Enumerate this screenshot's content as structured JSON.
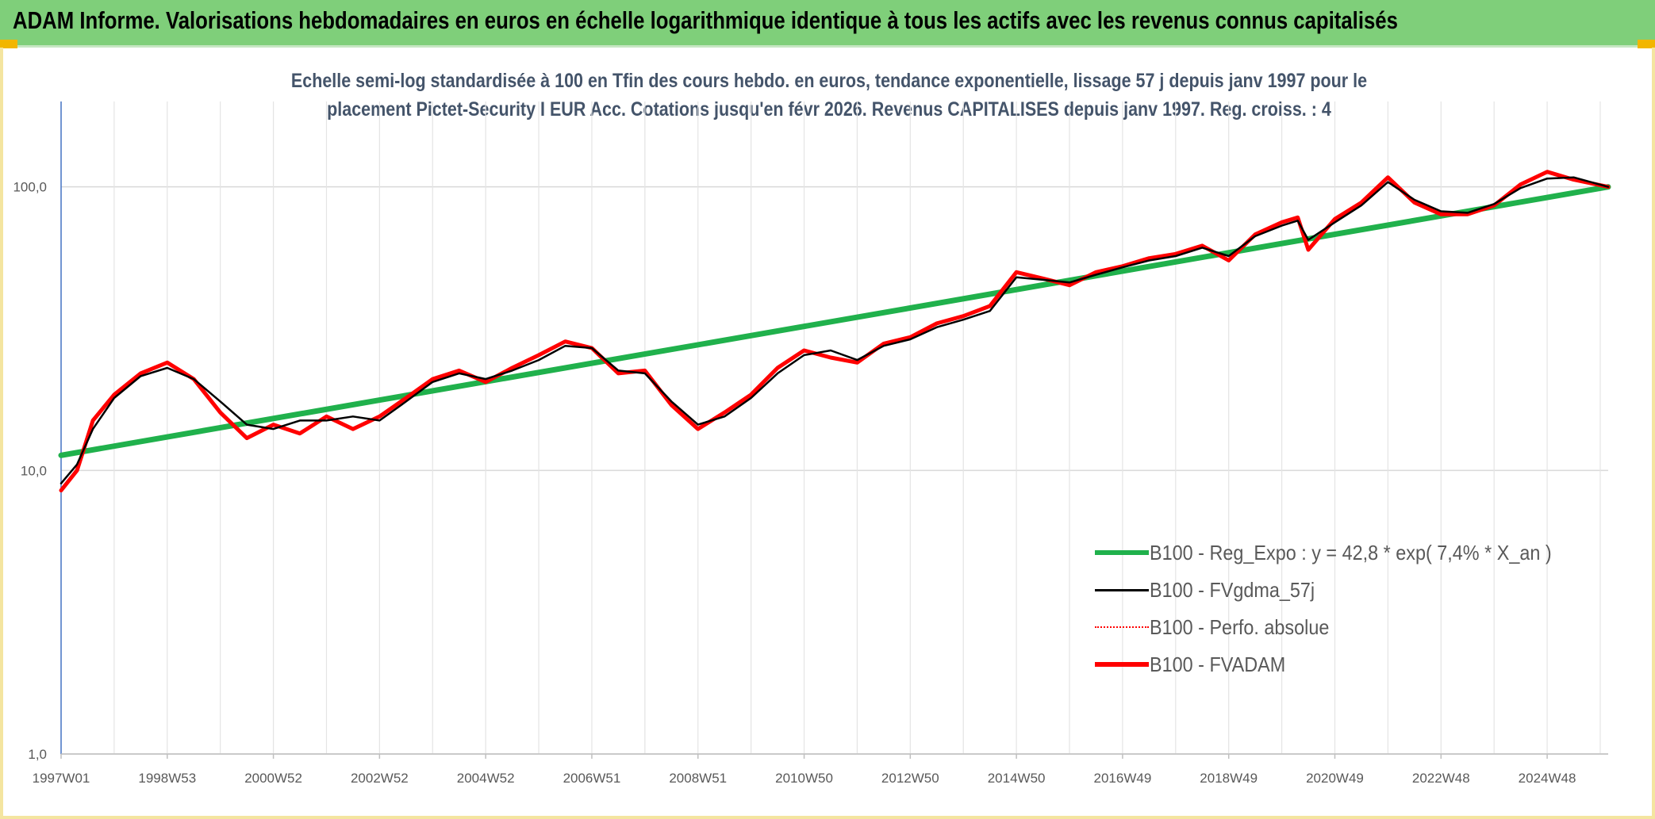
{
  "banner": {
    "title": "ADAM Informe. Valorisations hebdomadaires en euros en échelle logarithmique identique à tous les actifs avec les revenus connus capitalisés"
  },
  "colors": {
    "banner_bg": "#7fcf7a",
    "trend_green": "#20b14c",
    "smooth_black": "#000000",
    "perf_red": "#ff0000",
    "adam_red": "#ff0000",
    "axis_blue": "#4472c4",
    "grid": "#d9d9d9"
  },
  "chart_data": {
    "type": "line",
    "title_line1": "Echelle semi-log standardisée à 100 en Tfin des cours hebdo. en euros, tendance exponentielle, lissage 57 j depuis janv 1997 pour le",
    "title_line2": "placement Pictet-Security I EUR Acc. Cotations jusqu'en févr 2026. Revenus CAPITALISES depuis janv 1997. Reg. croiss. : 4",
    "y_scale": "log",
    "ylim": [
      1,
      200
    ],
    "y_ticks": [
      {
        "value": 1,
        "label": "1,0"
      },
      {
        "value": 10,
        "label": "10,0"
      },
      {
        "value": 100,
        "label": "100,0"
      }
    ],
    "x_range": [
      1997.0,
      2026.15
    ],
    "x_ticks": [
      {
        "x": 1997.0,
        "label": "1997W01"
      },
      {
        "x": 1999.0,
        "label": "1998W53"
      },
      {
        "x": 2001.0,
        "label": "2000W52"
      },
      {
        "x": 2003.0,
        "label": "2002W52"
      },
      {
        "x": 2005.0,
        "label": "2004W52"
      },
      {
        "x": 2007.0,
        "label": "2006W51"
      },
      {
        "x": 2009.0,
        "label": "2008W51"
      },
      {
        "x": 2011.0,
        "label": "2010W50"
      },
      {
        "x": 2013.0,
        "label": "2012W50"
      },
      {
        "x": 2015.0,
        "label": "2014W50"
      },
      {
        "x": 2017.0,
        "label": "2016W49"
      },
      {
        "x": 2019.0,
        "label": "2018W49"
      },
      {
        "x": 2021.0,
        "label": "2020W49"
      },
      {
        "x": 2023.0,
        "label": "2022W48"
      },
      {
        "x": 2025.0,
        "label": "2024W48"
      }
    ],
    "grid": true,
    "legend_position": "bottom-right",
    "series": [
      {
        "name": "B100 - Reg_Expo : y = 42,8 * exp( 7,4% *  X_an )",
        "style": "trend",
        "x": [
          1997.0,
          2026.15
        ],
        "y": [
          11.3,
          100
        ]
      },
      {
        "name": "B100 - FVgdma_57j",
        "style": "smooth",
        "x": [
          1997.0,
          1997.3,
          1997.6,
          1998.0,
          1998.5,
          1999.0,
          1999.5,
          2000.0,
          2000.5,
          2001.0,
          2001.5,
          2002.0,
          2002.5,
          2003.0,
          2003.5,
          2004.0,
          2004.5,
          2005.0,
          2005.5,
          2006.0,
          2006.5,
          2007.0,
          2007.5,
          2008.0,
          2008.5,
          2009.0,
          2009.5,
          2010.0,
          2010.5,
          2011.0,
          2011.5,
          2012.0,
          2012.5,
          2013.0,
          2013.5,
          2014.0,
          2014.5,
          2015.0,
          2015.5,
          2016.0,
          2016.5,
          2017.0,
          2017.5,
          2018.0,
          2018.5,
          2019.0,
          2019.5,
          2020.0,
          2020.3,
          2020.5,
          2021.0,
          2021.5,
          2022.0,
          2022.5,
          2023.0,
          2023.5,
          2024.0,
          2024.5,
          2025.0,
          2025.5,
          2026.15
        ],
        "y": [
          9.0,
          10.5,
          14.0,
          18.0,
          21.5,
          23.0,
          21.0,
          17.5,
          14.5,
          14.0,
          15.0,
          15.0,
          15.5,
          15.0,
          17.5,
          20.5,
          22.0,
          21.0,
          22.5,
          24.5,
          27.5,
          27.0,
          22.5,
          22.0,
          17.5,
          14.5,
          15.5,
          18.0,
          22.0,
          25.5,
          26.5,
          24.5,
          27.5,
          29.0,
          32.0,
          34.0,
          36.5,
          48.0,
          47.0,
          46.0,
          49.0,
          52.0,
          55.0,
          57.0,
          61.0,
          57.0,
          67.0,
          73.0,
          76.0,
          65.0,
          75.0,
          86.0,
          104.0,
          90.0,
          82.0,
          81.0,
          87.0,
          99.0,
          107.0,
          108.0,
          100.0
        ]
      },
      {
        "name": "B100 - Perfo. absolue",
        "style": "dotted",
        "x": [
          1997.0,
          1997.3,
          1997.6,
          1998.0,
          1998.5,
          1999.0,
          1999.5,
          2000.0,
          2000.5,
          2001.0,
          2001.5,
          2002.0,
          2002.5,
          2003.0,
          2003.5,
          2004.0,
          2004.5,
          2005.0,
          2005.5,
          2006.0,
          2006.5,
          2007.0,
          2007.5,
          2008.0,
          2008.5,
          2009.0,
          2009.5,
          2010.0,
          2010.5,
          2011.0,
          2011.5,
          2012.0,
          2012.5,
          2013.0,
          2013.5,
          2014.0,
          2014.5,
          2015.0,
          2015.5,
          2016.0,
          2016.5,
          2017.0,
          2017.5,
          2018.0,
          2018.5,
          2019.0,
          2019.5,
          2020.0,
          2020.3,
          2020.5,
          2021.0,
          2021.5,
          2022.0,
          2022.5,
          2023.0,
          2023.5,
          2024.0,
          2024.5,
          2025.0,
          2025.5,
          2026.15
        ],
        "y": [
          8.5,
          10.0,
          15.0,
          18.5,
          22.0,
          24.0,
          21.0,
          16.0,
          13.0,
          14.5,
          13.5,
          15.5,
          14.0,
          15.5,
          18.0,
          21.0,
          22.5,
          20.5,
          23.0,
          25.5,
          28.5,
          27.0,
          22.0,
          22.5,
          17.0,
          14.0,
          16.0,
          18.5,
          23.0,
          26.5,
          25.0,
          24.0,
          28.0,
          29.5,
          33.0,
          35.0,
          38.0,
          50.0,
          47.5,
          45.0,
          50.0,
          52.5,
          56.0,
          58.0,
          62.0,
          55.0,
          68.0,
          75.0,
          78.0,
          60.0,
          77.0,
          88.0,
          108.0,
          88.0,
          80.0,
          80.0,
          86.0,
          102.0,
          113.0,
          106.0,
          100.0
        ]
      },
      {
        "name": "B100 - FVADAM",
        "style": "thick",
        "x": [
          1997.0,
          1997.3,
          1997.6,
          1998.0,
          1998.5,
          1999.0,
          1999.5,
          2000.0,
          2000.5,
          2001.0,
          2001.5,
          2002.0,
          2002.5,
          2003.0,
          2003.5,
          2004.0,
          2004.5,
          2005.0,
          2005.5,
          2006.0,
          2006.5,
          2007.0,
          2007.5,
          2008.0,
          2008.5,
          2009.0,
          2009.5,
          2010.0,
          2010.5,
          2011.0,
          2011.5,
          2012.0,
          2012.5,
          2013.0,
          2013.5,
          2014.0,
          2014.5,
          2015.0,
          2015.5,
          2016.0,
          2016.5,
          2017.0,
          2017.5,
          2018.0,
          2018.5,
          2019.0,
          2019.5,
          2020.0,
          2020.3,
          2020.5,
          2021.0,
          2021.5,
          2022.0,
          2022.5,
          2023.0,
          2023.5,
          2024.0,
          2024.5,
          2025.0,
          2025.5,
          2026.15
        ],
        "y": [
          8.5,
          10.0,
          15.0,
          18.5,
          22.0,
          24.0,
          21.0,
          16.0,
          13.0,
          14.5,
          13.5,
          15.5,
          14.0,
          15.5,
          18.0,
          21.0,
          22.5,
          20.5,
          23.0,
          25.5,
          28.5,
          27.0,
          22.0,
          22.5,
          17.0,
          14.0,
          16.0,
          18.5,
          23.0,
          26.5,
          25.0,
          24.0,
          28.0,
          29.5,
          33.0,
          35.0,
          38.0,
          50.0,
          47.5,
          45.0,
          50.0,
          52.5,
          56.0,
          58.0,
          62.0,
          55.0,
          68.0,
          75.0,
          78.0,
          60.0,
          77.0,
          88.0,
          108.0,
          88.0,
          80.0,
          80.0,
          86.0,
          102.0,
          113.0,
          106.0,
          100.0
        ]
      }
    ]
  }
}
